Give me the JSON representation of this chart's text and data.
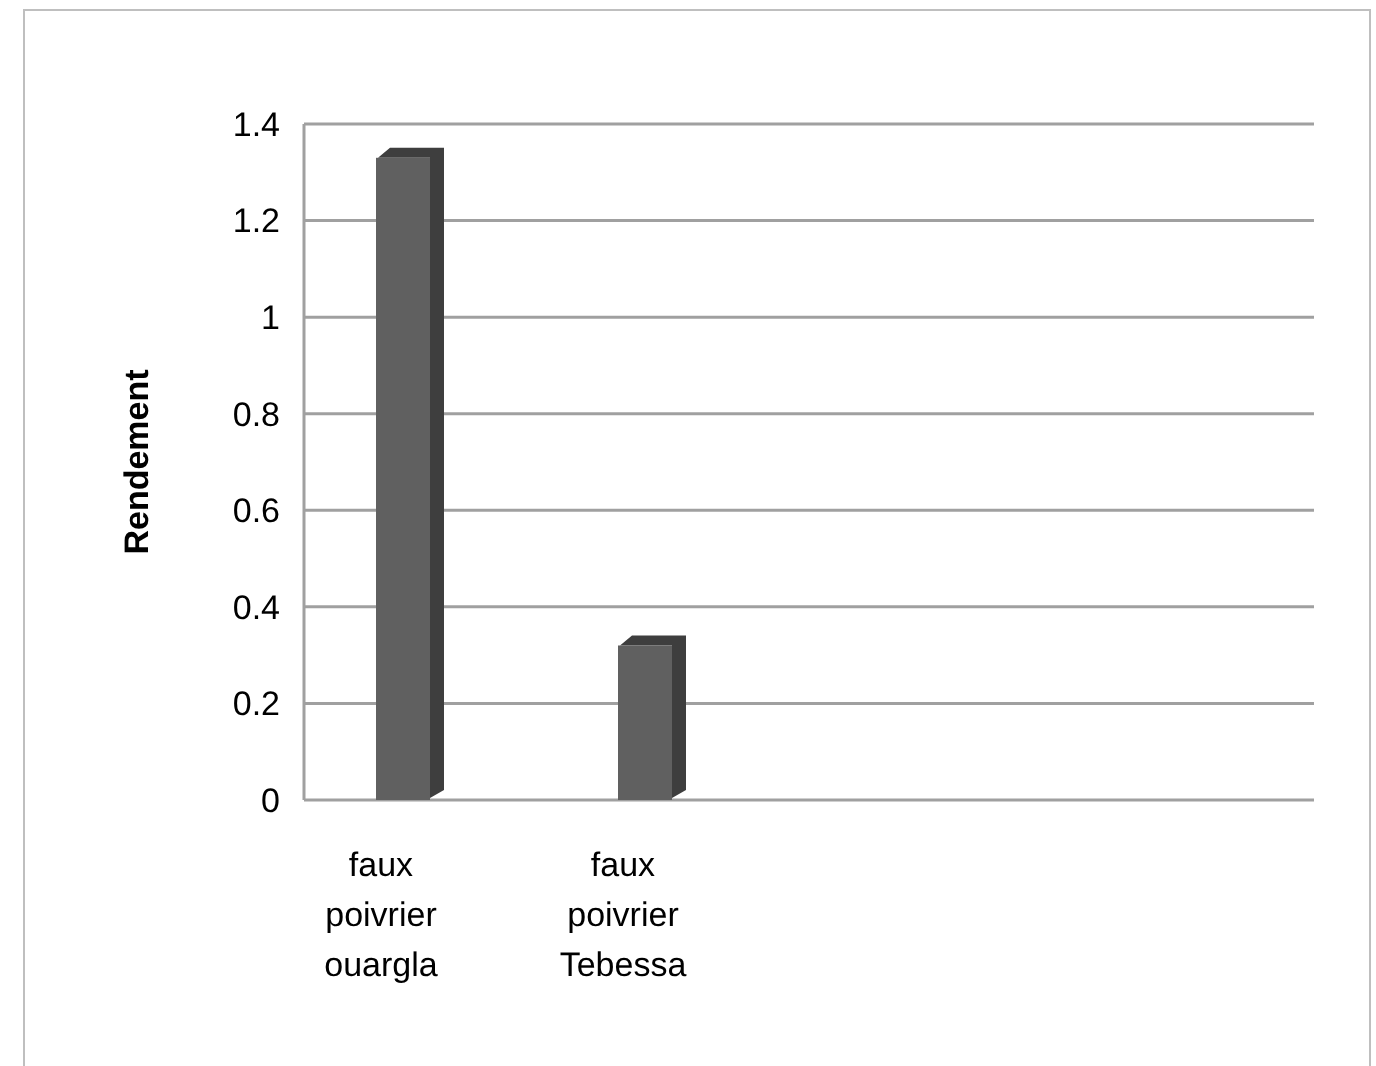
{
  "chart_data": {
    "type": "bar",
    "ylabel": "Rendement",
    "categories": [
      "faux poivrier ouargla",
      "faux poivrier Tebessa",
      null,
      null
    ],
    "values": [
      1.33,
      0.32,
      null,
      null
    ],
    "color": "#606060",
    "ylim": [
      0,
      1.4
    ],
    "yticks": [
      0,
      0.2,
      0.4,
      0.6,
      0.8,
      1,
      1.2,
      1.4
    ],
    "grid": "y"
  }
}
